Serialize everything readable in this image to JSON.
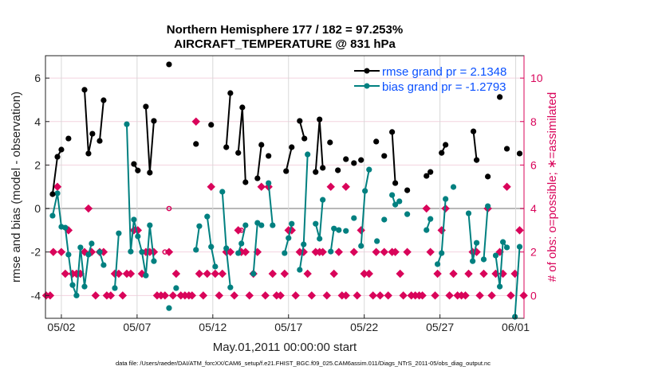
{
  "chart_data": {
    "type": "line",
    "title_line1": "Northern Hemisphere 177 / 182 = 97.253%",
    "title_line2": "AIRCRAFT_TEMPERATURE @ 831 hPa",
    "xlabel": "May.01,2011 00:00:00 start",
    "ylabel_left": "rmse and bias (model - observation)",
    "ylabel_right": "# of obs: o=possible; ∗=assimilated",
    "footer": "data file: /Users/raeder/DAI/ATM_forcXX/CAM6_setup/f.e21.FHIST_BGC.f09_025.CAM6assim.011/Diags_NTrS_2011-05/obs_diag_output.nc",
    "x_units": "day of May 2011 (32 = 06/01)",
    "xlim": [
      0.95,
      32.55
    ],
    "x_ticks": [
      {
        "v": 2,
        "label": "05/02"
      },
      {
        "v": 7,
        "label": "05/07"
      },
      {
        "v": 12,
        "label": "05/12"
      },
      {
        "v": 17,
        "label": "05/17"
      },
      {
        "v": 22,
        "label": "05/22"
      },
      {
        "v": 27,
        "label": "05/27"
      },
      {
        "v": 32,
        "label": "06/01"
      }
    ],
    "ylim_left": [
      -5.05,
      7.03
    ],
    "y_ticks_left": [
      -4,
      -2,
      0,
      2,
      4,
      6
    ],
    "ylim_right": [
      -1.05,
      11.03
    ],
    "y_ticks_right": [
      0,
      2,
      4,
      6,
      8,
      10
    ],
    "grid": true,
    "legend_placement": "top-right",
    "colors": {
      "rmse": "#000000",
      "bias": "#008080",
      "obs": "#d9045a",
      "legend_text": "#0a50ff",
      "right_axis": "#d9045a",
      "grid": "#f2d3df",
      "vgrid": "#d8d8d8",
      "zero": "#b8b8b8"
    },
    "series": [
      {
        "name": "rmse grand pr = 2.1348",
        "key": "rmse",
        "segments": [
          [
            [
              1.42,
              0.66
            ],
            [
              1.74,
              2.38
            ],
            [
              2.0,
              2.71
            ]
          ],
          [
            [
              2.47,
              3.22
            ]
          ],
          [
            [
              3.53,
              5.46
            ],
            [
              3.79,
              2.53
            ],
            [
              4.05,
              3.44
            ]
          ],
          [
            [
              4.53,
              3.11
            ],
            [
              4.79,
              4.98
            ]
          ],
          [
            [
              6.79,
              2.05
            ],
            [
              7.05,
              1.75
            ]
          ],
          [
            [
              7.58,
              4.69
            ],
            [
              7.84,
              1.65
            ],
            [
              8.11,
              4.03
            ]
          ],
          [
            [
              9.11,
              6.63
            ]
          ],
          [
            [
              10.89,
              2.97
            ]
          ],
          [
            [
              11.89,
              3.85
            ]
          ],
          [
            [
              12.89,
              2.82
            ],
            [
              13.16,
              5.31
            ]
          ],
          [
            [
              13.68,
              2.56
            ],
            [
              13.95,
              4.65
            ],
            [
              14.16,
              1.21
            ]
          ],
          [
            [
              14.95,
              1.39
            ],
            [
              15.21,
              2.93
            ]
          ],
          [
            [
              15.68,
              2.42
            ]
          ],
          [
            [
              16.84,
              1.72
            ],
            [
              17.21,
              2.82
            ]
          ],
          [
            [
              17.74,
              4.03
            ],
            [
              18.05,
              3.22
            ]
          ],
          [
            [
              18.79,
              1.68
            ],
            [
              19.05,
              4.1
            ],
            [
              19.26,
              1.87
            ]
          ],
          [
            [
              19.74,
              3.04
            ]
          ],
          [
            [
              20.26,
              1.76
            ]
          ],
          [
            [
              20.79,
              2.27
            ]
          ],
          [
            [
              21.32,
              2.09
            ]
          ],
          [
            [
              21.79,
              2.23
            ]
          ],
          [
            [
              22.79,
              3.08
            ]
          ],
          [
            [
              23.32,
              2.42
            ]
          ],
          [
            [
              23.84,
              3.52
            ],
            [
              24.05,
              1.17
            ]
          ],
          [
            [
              24.84,
              0.84
            ]
          ],
          [
            [
              26.11,
              1.5
            ],
            [
              26.37,
              1.68
            ]
          ],
          [
            [
              27.11,
              2.56
            ],
            [
              27.37,
              2.93
            ]
          ],
          [
            [
              29.21,
              3.55
            ],
            [
              29.42,
              2.23
            ]
          ],
          [
            [
              30.16,
              1.47
            ]
          ],
          [
            [
              30.95,
              5.13
            ]
          ],
          [
            [
              31.42,
              2.75
            ]
          ],
          [
            [
              32.26,
              2.53
            ]
          ]
        ]
      },
      {
        "name": "bias grand pr = -1.2793",
        "key": "bias",
        "segments": [
          [
            [
              1.42,
              -0.33
            ],
            [
              1.74,
              0.7
            ],
            [
              2.0,
              -0.84
            ],
            [
              2.26,
              -0.88
            ],
            [
              2.47,
              -2.12
            ],
            [
              2.74,
              -3.52
            ],
            [
              3.0,
              -4.0
            ],
            [
              3.26,
              -1.79
            ],
            [
              3.53,
              -3.59
            ],
            [
              3.79,
              -2.12
            ],
            [
              4.0,
              -1.61
            ]
          ],
          [
            [
              4.53,
              -2.0
            ],
            [
              4.79,
              -2.6
            ]
          ],
          [
            [
              5.53,
              -3.66
            ],
            [
              5.79,
              -1.14
            ]
          ],
          [
            [
              6.32,
              3.88
            ],
            [
              6.58,
              -1.98
            ],
            [
              6.79,
              -0.51
            ],
            [
              7.05,
              -1.28
            ],
            [
              7.32,
              -2.0
            ],
            [
              7.58,
              -3.08
            ],
            [
              7.84,
              -0.77
            ],
            [
              8.11,
              -2.42
            ]
          ],
          [
            [
              9.11,
              -4.58
            ]
          ],
          [
            [
              9.58,
              -3.66
            ]
          ],
          [
            [
              10.89,
              -1.9
            ],
            [
              11.11,
              -0.81
            ]
          ],
          [
            [
              11.63,
              -0.37
            ],
            [
              11.89,
              -1.76
            ],
            [
              12.16,
              -2.67
            ]
          ],
          [
            [
              12.63,
              0.77
            ],
            [
              12.89,
              -1.83
            ],
            [
              13.16,
              -3.63
            ]
          ],
          [
            [
              13.68,
              -2.05
            ],
            [
              13.89,
              -1.61
            ],
            [
              14.16,
              -0.77
            ]
          ],
          [
            [
              14.68,
              -3.0
            ],
            [
              14.95,
              -0.66
            ],
            [
              15.21,
              -0.77
            ]
          ],
          [
            [
              15.68,
              1.17
            ],
            [
              15.95,
              -0.77
            ]
          ],
          [
            [
              16.74,
              -2.05
            ],
            [
              17.0,
              -1.36
            ],
            [
              17.21,
              -0.7
            ]
          ],
          [
            [
              17.74,
              -2.82
            ],
            [
              18.0,
              -1.65
            ],
            [
              18.26,
              2.49
            ]
          ],
          [
            [
              18.79,
              -0.7
            ],
            [
              19.05,
              -1.39
            ],
            [
              19.26,
              0.4
            ]
          ],
          [
            [
              19.79,
              -1.98
            ],
            [
              20.0,
              -0.92
            ],
            [
              20.32,
              -0.99
            ]
          ],
          [
            [
              20.79,
              -1.03
            ]
          ],
          [
            [
              21.32,
              -0.44
            ]
          ],
          [
            [
              21.79,
              -1.72
            ],
            [
              22.05,
              0.81
            ],
            [
              22.32,
              1.79
            ]
          ],
          [
            [
              22.84,
              -1.5
            ]
          ],
          [
            [
              23.32,
              -0.51
            ]
          ],
          [
            [
              23.84,
              0.62
            ],
            [
              24.05,
              0.18
            ],
            [
              24.32,
              0.33
            ]
          ],
          [
            [
              24.84,
              -0.26
            ]
          ],
          [
            [
              26.11,
              -0.99
            ],
            [
              26.37,
              -0.48
            ]
          ],
          [
            [
              26.84,
              -2.56
            ],
            [
              27.11,
              -2.05
            ],
            [
              27.37,
              0.44
            ]
          ],
          [
            [
              27.89,
              0.99
            ]
          ],
          [
            [
              28.89,
              -0.22
            ],
            [
              29.16,
              -2.42
            ],
            [
              29.42,
              -1.58
            ]
          ],
          [
            [
              29.89,
              -2.34
            ],
            [
              30.16,
              0.11
            ]
          ],
          [
            [
              30.68,
              -2.16
            ],
            [
              30.95,
              -3.59
            ],
            [
              31.16,
              -1.54
            ],
            [
              31.42,
              -1.79
            ]
          ],
          [
            [
              31.95,
              -4.98
            ],
            [
              32.26,
              -1.76
            ]
          ]
        ]
      }
    ],
    "obs_assimilated": [
      [
        1.0,
        0
      ],
      [
        1.26,
        0
      ],
      [
        1.47,
        2
      ],
      [
        1.74,
        5
      ],
      [
        2.0,
        2
      ],
      [
        2.26,
        1
      ],
      [
        2.47,
        3
      ],
      [
        2.74,
        1
      ],
      [
        3.0,
        1
      ],
      [
        3.26,
        1
      ],
      [
        3.53,
        2
      ],
      [
        3.79,
        4
      ],
      [
        4.0,
        2
      ],
      [
        4.26,
        0
      ],
      [
        4.53,
        2
      ],
      [
        4.79,
        2
      ],
      [
        5.0,
        0
      ],
      [
        5.26,
        0
      ],
      [
        5.53,
        1
      ],
      [
        5.79,
        1
      ],
      [
        6.05,
        0
      ],
      [
        6.32,
        1
      ],
      [
        6.58,
        1
      ],
      [
        6.79,
        3
      ],
      [
        7.05,
        3
      ],
      [
        7.32,
        1
      ],
      [
        7.58,
        2
      ],
      [
        7.84,
        2
      ],
      [
        8.11,
        2
      ],
      [
        8.32,
        0
      ],
      [
        8.58,
        0
      ],
      [
        8.84,
        0
      ],
      [
        9.11,
        2
      ],
      [
        9.37,
        0
      ],
      [
        9.58,
        1
      ],
      [
        9.89,
        0
      ],
      [
        10.16,
        0
      ],
      [
        10.42,
        0
      ],
      [
        10.63,
        0
      ],
      [
        10.89,
        8
      ],
      [
        11.11,
        1
      ],
      [
        11.37,
        0
      ],
      [
        11.63,
        1
      ],
      [
        11.89,
        5
      ],
      [
        12.16,
        1
      ],
      [
        12.42,
        0
      ],
      [
        12.63,
        1
      ],
      [
        12.89,
        2
      ],
      [
        13.16,
        2
      ],
      [
        13.42,
        0
      ],
      [
        13.68,
        3
      ],
      [
        13.89,
        2
      ],
      [
        14.16,
        2
      ],
      [
        14.42,
        0
      ],
      [
        14.68,
        1
      ],
      [
        14.95,
        2
      ],
      [
        15.21,
        5
      ],
      [
        15.47,
        0
      ],
      [
        15.68,
        5
      ],
      [
        15.95,
        1
      ],
      [
        16.21,
        0
      ],
      [
        16.47,
        0
      ],
      [
        16.74,
        1
      ],
      [
        17.0,
        3
      ],
      [
        17.21,
        3
      ],
      [
        17.47,
        0
      ],
      [
        17.74,
        2
      ],
      [
        18.0,
        2
      ],
      [
        18.26,
        1
      ],
      [
        18.53,
        0
      ],
      [
        18.79,
        2
      ],
      [
        19.05,
        2
      ],
      [
        19.26,
        2
      ],
      [
        19.53,
        0
      ],
      [
        19.79,
        5
      ],
      [
        20.0,
        1
      ],
      [
        20.32,
        2
      ],
      [
        20.53,
        0
      ],
      [
        20.79,
        0
      ],
      [
        20.79,
        5
      ],
      [
        21.32,
        2
      ],
      [
        21.53,
        0
      ],
      [
        21.79,
        3
      ],
      [
        22.0,
        1
      ],
      [
        22.32,
        1
      ],
      [
        22.58,
        0
      ],
      [
        22.79,
        2
      ],
      [
        23.05,
        0
      ],
      [
        23.32,
        2
      ],
      [
        23.58,
        0
      ],
      [
        23.84,
        2
      ],
      [
        24.05,
        2
      ],
      [
        24.37,
        1
      ],
      [
        24.58,
        0
      ],
      [
        24.84,
        2
      ],
      [
        25.11,
        0
      ],
      [
        25.37,
        0
      ],
      [
        25.63,
        0
      ],
      [
        25.84,
        0
      ],
      [
        26.11,
        4
      ],
      [
        26.37,
        2
      ],
      [
        26.68,
        0
      ],
      [
        26.84,
        1
      ],
      [
        27.11,
        3
      ],
      [
        27.37,
        4
      ],
      [
        27.63,
        0
      ],
      [
        27.89,
        1
      ],
      [
        28.16,
        0
      ],
      [
        28.42,
        0
      ],
      [
        28.68,
        0
      ],
      [
        28.89,
        1
      ],
      [
        29.16,
        2
      ],
      [
        29.42,
        2
      ],
      [
        29.63,
        0
      ],
      [
        29.89,
        1
      ],
      [
        30.16,
        4
      ],
      [
        30.42,
        0
      ],
      [
        30.68,
        1
      ],
      [
        30.95,
        2
      ],
      [
        31.16,
        1
      ],
      [
        31.42,
        5
      ],
      [
        31.68,
        0
      ],
      [
        31.95,
        1
      ],
      [
        32.26,
        3
      ],
      [
        32.53,
        0
      ]
    ],
    "obs_possible_only": [
      [
        8.84,
        2
      ],
      [
        9.11,
        4
      ],
      [
        13.89,
        3
      ]
    ]
  }
}
